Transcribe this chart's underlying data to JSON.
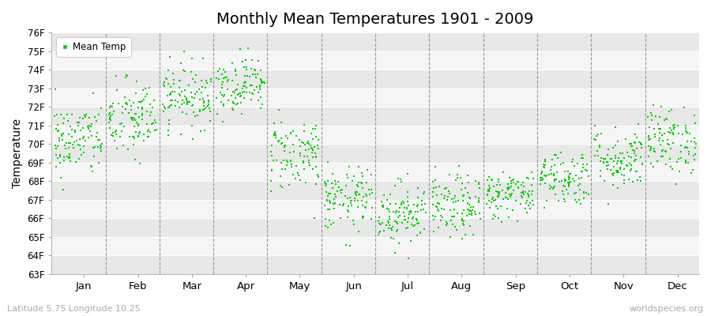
{
  "title": "Monthly Mean Temperatures 1901 - 2009",
  "ylabel": "Temperature",
  "xlabel_bottom": "Latitude 5.75 Longitude 10.25",
  "watermark": "worldspecies.org",
  "ylim": [
    63,
    76
  ],
  "yticks": [
    63,
    64,
    65,
    66,
    67,
    68,
    69,
    70,
    71,
    72,
    73,
    74,
    75,
    76
  ],
  "ytick_labels": [
    "63F",
    "64F",
    "65F",
    "66F",
    "67F",
    "68F",
    "69F",
    "70F",
    "71F",
    "72F",
    "73F",
    "74F",
    "75F",
    "76F"
  ],
  "months": [
    "Jan",
    "Feb",
    "Mar",
    "Apr",
    "May",
    "Jun",
    "Jul",
    "Aug",
    "Sep",
    "Oct",
    "Nov",
    "Dec"
  ],
  "legend_label": "Mean Temp",
  "marker_color": "#00cc00",
  "marker_size": 2.5,
  "monthly_means": [
    70.2,
    71.3,
    72.6,
    73.2,
    69.5,
    67.0,
    66.3,
    66.6,
    67.3,
    68.2,
    69.2,
    70.2
  ],
  "monthly_stds": [
    1.0,
    1.1,
    0.85,
    0.75,
    1.0,
    0.85,
    0.85,
    0.85,
    0.65,
    0.75,
    0.85,
    0.9
  ],
  "n_years": 109,
  "seed": 42,
  "band_colors": [
    "#e8e8e8",
    "#f5f5f5"
  ],
  "grid_color": "#ffffff",
  "dashed_line_color": "#888888"
}
